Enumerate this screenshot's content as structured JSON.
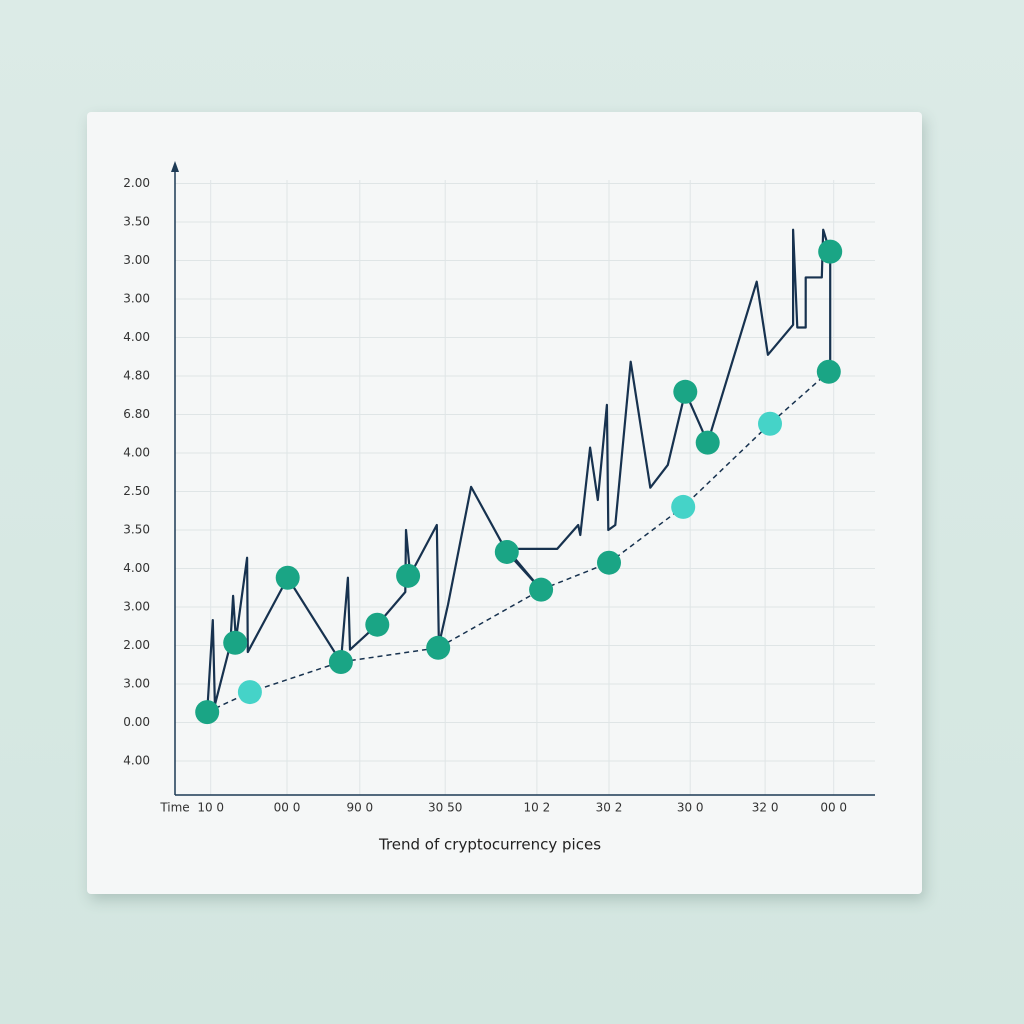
{
  "chart_data": {
    "type": "line",
    "title": "Trend of cryptocurrency pices",
    "xlabel": "Time",
    "xlim": [
      0,
      100
    ],
    "ylim": [
      -1,
      16
    ],
    "xticks": [
      {
        "value": 5.1,
        "label": "10 0"
      },
      {
        "value": 16,
        "label": "00 0"
      },
      {
        "value": 26.4,
        "label": "90 0"
      },
      {
        "value": 38.6,
        "label": "30 50"
      },
      {
        "value": 51.7,
        "label": "10 2"
      },
      {
        "value": 62,
        "label": "30 2"
      },
      {
        "value": 73.6,
        "label": "30 0"
      },
      {
        "value": 84.3,
        "label": "32 0"
      },
      {
        "value": 94.1,
        "label": "00 0"
      }
    ],
    "yticks": [
      {
        "value": 0,
        "label": "4.00"
      },
      {
        "value": 1,
        "label": "0.00"
      },
      {
        "value": 2,
        "label": "3.00"
      },
      {
        "value": 3,
        "label": "2.00"
      },
      {
        "value": 4,
        "label": "3.00"
      },
      {
        "value": 5,
        "label": "4.00"
      },
      {
        "value": 6,
        "label": "3.50"
      },
      {
        "value": 7,
        "label": "2.50"
      },
      {
        "value": 8,
        "label": "4.00"
      },
      {
        "value": 9,
        "label": "6.80"
      },
      {
        "value": 10,
        "label": "4.80"
      },
      {
        "value": 11,
        "label": "4.00"
      },
      {
        "value": 12,
        "label": "3.00"
      },
      {
        "value": 13,
        "label": "3.00"
      },
      {
        "value": 14,
        "label": "3.50"
      },
      {
        "value": 15,
        "label": "2.00"
      }
    ],
    "grid": true,
    "series": [
      {
        "type": "line",
        "color": "#17324f",
        "dashed": false,
        "x": [
          4.6,
          5.4,
          5.7,
          7.9,
          8.3,
          8.7,
          10.3,
          10.4,
          16.1,
          23.7,
          24.7,
          25.0,
          28.9,
          32.9,
          33.0,
          33.6,
          37.4,
          37.7,
          39.0,
          42.3,
          47.4,
          52.3,
          47.4,
          54.6,
          57.6,
          57.9,
          59.3,
          60.4,
          61.7,
          61.9,
          62.9,
          65.1,
          67.9,
          70.4,
          72.9,
          76.1,
          83.1,
          84.7,
          88.3,
          88.3,
          88.9,
          90.1,
          90.1,
          92.4,
          92.6,
          93.6,
          93.6
        ],
        "values": [
          1.27,
          3.66,
          1.46,
          3.02,
          4.29,
          3.15,
          5.28,
          2.83,
          4.76,
          2.57,
          4.76,
          2.89,
          3.54,
          4.39,
          6.0,
          4.83,
          6.13,
          3.02,
          4.06,
          7.12,
          5.43,
          4.45,
          5.51,
          5.51,
          6.13,
          5.87,
          8.14,
          6.78,
          9.25,
          6.0,
          6.13,
          10.37,
          7.1,
          7.69,
          9.59,
          8.27,
          12.45,
          10.55,
          11.33,
          13.8,
          11.26,
          11.26,
          12.56,
          12.56,
          13.8,
          13.2,
          10.11
        ]
      },
      {
        "type": "line",
        "color": "#17324f",
        "dashed": true,
        "x": [
          4.6,
          10.7,
          23.6,
          37.6,
          52.3,
          62.0,
          72.6,
          85.0,
          93.4
        ],
        "values": [
          1.27,
          1.79,
          2.57,
          2.94,
          4.45,
          5.15,
          6.6,
          8.76,
          10.11
        ]
      },
      {
        "type": "scatter",
        "color": "#1aa585",
        "x": [
          4.6,
          8.6,
          16.1,
          23.7,
          28.9,
          33.3,
          37.6,
          47.4,
          52.3,
          62.0,
          72.9,
          76.1,
          93.6,
          93.4
        ],
        "values": [
          1.27,
          3.07,
          4.76,
          2.57,
          3.54,
          4.81,
          2.94,
          5.43,
          4.45,
          5.15,
          9.59,
          8.27,
          13.23,
          10.11
        ]
      },
      {
        "type": "scatter",
        "color": "#45d3c8",
        "x": [
          10.7,
          72.6,
          85.0
        ],
        "values": [
          1.79,
          6.6,
          8.76
        ]
      }
    ]
  }
}
